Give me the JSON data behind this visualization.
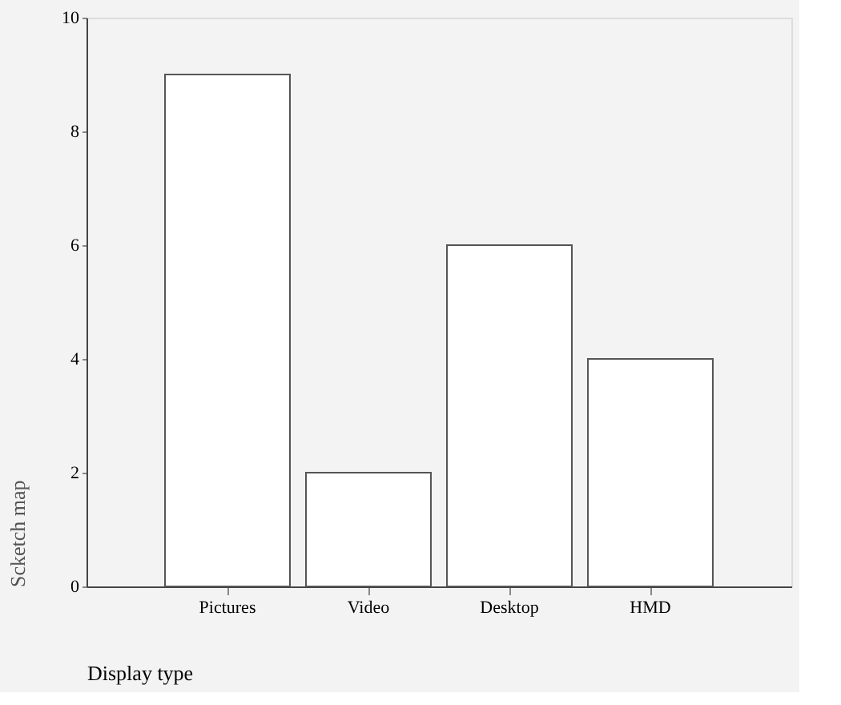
{
  "chart_data": {
    "type": "bar",
    "categories": [
      "Pictures",
      "Video",
      "Desktop",
      "HMD"
    ],
    "values": [
      9,
      2,
      6,
      4
    ],
    "color": "#ffffff",
    "xlabel": "Display type",
    "ylabel": "Scketch map",
    "ylim": [
      0,
      10
    ],
    "yticks": [
      0,
      2,
      4,
      6,
      8,
      10
    ],
    "grid": false
  }
}
